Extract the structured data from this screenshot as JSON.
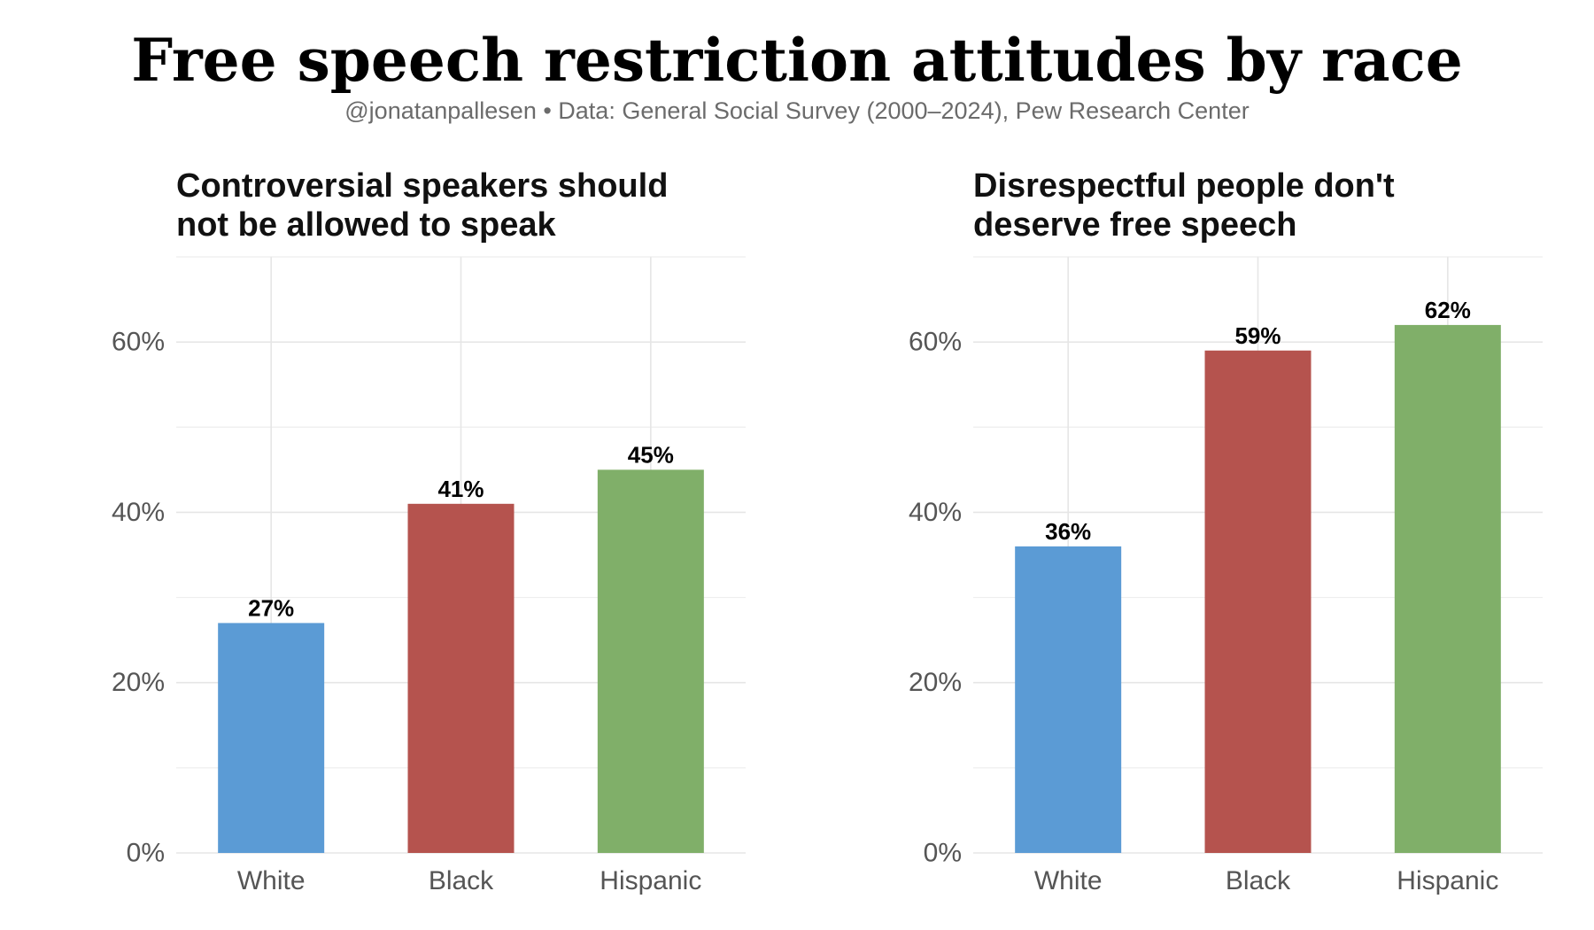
{
  "title": "Free speech restriction attitudes by race",
  "subtitle": "@jonatanpallesen • Data: General Social Survey (2000–2024), Pew Research Center",
  "colors": {
    "White": "#5b9bd5",
    "Black": "#b5534e",
    "Hispanic": "#80af69"
  },
  "chart_data": [
    {
      "type": "bar",
      "title": "Controversial speakers should not be allowed to speak",
      "title_lines": [
        "Controversial speakers should",
        "not be allowed to speak"
      ],
      "categories": [
        "White",
        "Black",
        "Hispanic"
      ],
      "values": [
        27,
        41,
        45
      ],
      "value_labels": [
        "27%",
        "41%",
        "45%"
      ],
      "xlabel": "",
      "ylabel": "",
      "ylim": [
        0,
        70
      ],
      "yticks": [
        0,
        20,
        40,
        60
      ],
      "ytick_labels": [
        "0%",
        "20%",
        "40%",
        "60%"
      ],
      "grid": true,
      "legend": "none"
    },
    {
      "type": "bar",
      "title": "Disrespectful people don't deserve free speech",
      "title_lines": [
        "Disrespectful people don't",
        "deserve free speech"
      ],
      "categories": [
        "White",
        "Black",
        "Hispanic"
      ],
      "values": [
        36,
        59,
        62
      ],
      "value_labels": [
        "36%",
        "59%",
        "62%"
      ],
      "xlabel": "",
      "ylabel": "",
      "ylim": [
        0,
        70
      ],
      "yticks": [
        0,
        20,
        40,
        60
      ],
      "ytick_labels": [
        "0%",
        "20%",
        "40%",
        "60%"
      ],
      "grid": true,
      "legend": "none"
    }
  ]
}
